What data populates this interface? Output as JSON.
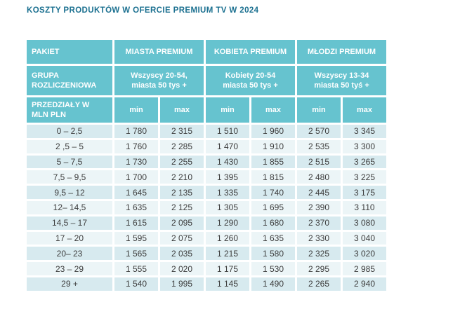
{
  "page_title": "KOSZTY PRODUKTÓW W OFERCIE PREMIUM TV W 2024",
  "colors": {
    "header_teal": "#66C3CF",
    "row_stripe_dark": "#D7EAEF",
    "row_stripe_light": "#ECF5F7",
    "title_color": "#1B7090",
    "cell_text": "#3D3D3D"
  },
  "table": {
    "header": {
      "pakiet_label": "PAKIET",
      "groups": [
        "MIASTA PREMIUM",
        "KOBIETA PREMIUM",
        "MŁODZI PREMIUM"
      ],
      "grupa_label": "GRUPA ROZLICZENIOWA",
      "grupa_values": [
        {
          "line1": "Wszyscy 20-54,",
          "line2": "miasta 50 tys +"
        },
        {
          "line1": "Kobiety 20-54",
          "line2": "miasta 50 tys +"
        },
        {
          "line1": "Wszyscy 13-34",
          "line2": "miasta 50 tyś +"
        }
      ],
      "przedzialy_label": "PRZEDZIAŁY W MLN PLN",
      "minmax_labels": [
        "min",
        "max",
        "min",
        "max",
        "min",
        "max"
      ]
    },
    "rows": [
      {
        "range": "0 – 2,5",
        "values": [
          "1 780",
          "2 315",
          "1 510",
          "1 960",
          "2 570",
          "3 345"
        ]
      },
      {
        "range": "2 ,5 – 5",
        "values": [
          "1 760",
          "2 285",
          "1 470",
          "1 910",
          "2 535",
          "3 300"
        ]
      },
      {
        "range": "5 – 7,5",
        "values": [
          "1 730",
          "2 255",
          "1 430",
          "1 855",
          "2 515",
          "3 265"
        ]
      },
      {
        "range": "7,5 – 9,5",
        "values": [
          "1 700",
          "2 210",
          "1 395",
          "1 815",
          "2 480",
          "3 225"
        ]
      },
      {
        "range": "9,5 – 12",
        "values": [
          "1 645",
          "2 135",
          "1 335",
          "1 740",
          "2 445",
          "3 175"
        ]
      },
      {
        "range": "12– 14,5",
        "values": [
          "1 635",
          "2 125",
          "1 305",
          "1 695",
          "2 390",
          "3 110"
        ]
      },
      {
        "range": "14,5 – 17",
        "values": [
          "1 615",
          "2 095",
          "1 290",
          "1 680",
          "2 370",
          "3 080"
        ]
      },
      {
        "range": "17 – 20",
        "values": [
          "1 595",
          "2 075",
          "1 260",
          "1 635",
          "2 330",
          "3 040"
        ]
      },
      {
        "range": "20– 23",
        "values": [
          "1 565",
          "2 035",
          "1 215",
          "1 580",
          "2 325",
          "3 020"
        ]
      },
      {
        "range": "23 – 29",
        "values": [
          "1 555",
          "2 020",
          "1 175",
          "1 530",
          "2 295",
          "2 985"
        ]
      },
      {
        "range": "29 +",
        "values": [
          "1 540",
          "1 995",
          "1 145",
          "1 490",
          "2 265",
          "2 940"
        ]
      }
    ]
  }
}
